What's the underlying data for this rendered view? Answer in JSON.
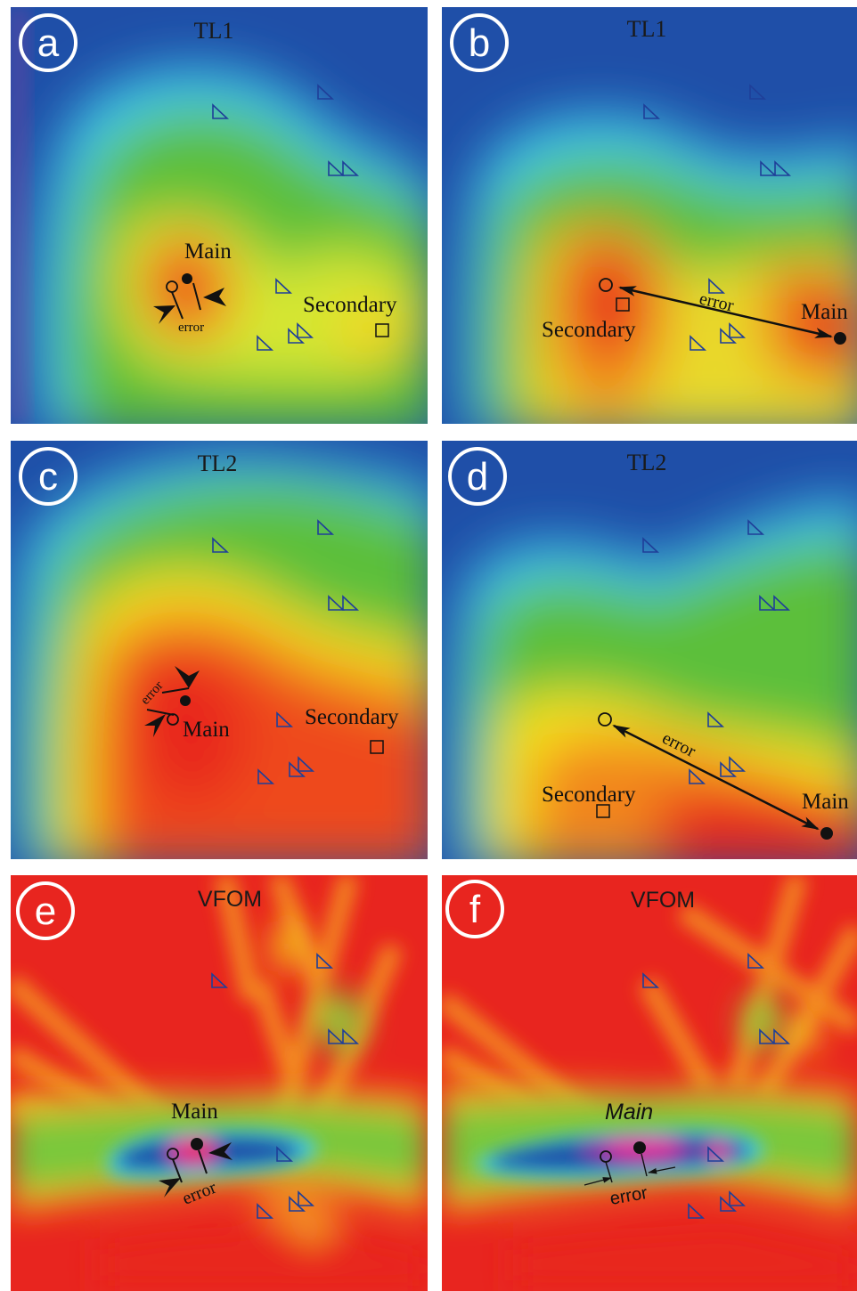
{
  "panels": [
    {
      "letter": "a",
      "title": "TL1",
      "main_label": "Main",
      "secondary_label": "Secondary",
      "error_label": "error"
    },
    {
      "letter": "b",
      "title": "TL1",
      "main_label": "Main",
      "secondary_label": "Secondary",
      "error_label": "error"
    },
    {
      "letter": "c",
      "title": "TL2",
      "main_label": "Main",
      "secondary_label": "Secondary",
      "error_label": "error"
    },
    {
      "letter": "d",
      "title": "TL2",
      "main_label": "Main",
      "secondary_label": "Secondary",
      "error_label": "error"
    },
    {
      "letter": "e",
      "title": "VFOM",
      "main_label": "Main",
      "error_label": "error"
    },
    {
      "letter": "f",
      "title": "VFOM",
      "main_label": "Main",
      "error_label": "error"
    }
  ],
  "colors": {
    "red": "#e8251f",
    "orange": "#f26a1a",
    "yellow": "#f7e21c",
    "green": "#5cbf3a",
    "cyan": "#3fd0f0",
    "blue": "#1f4fa8",
    "magenta": "#e2309a",
    "station": "#1f3f99"
  }
}
